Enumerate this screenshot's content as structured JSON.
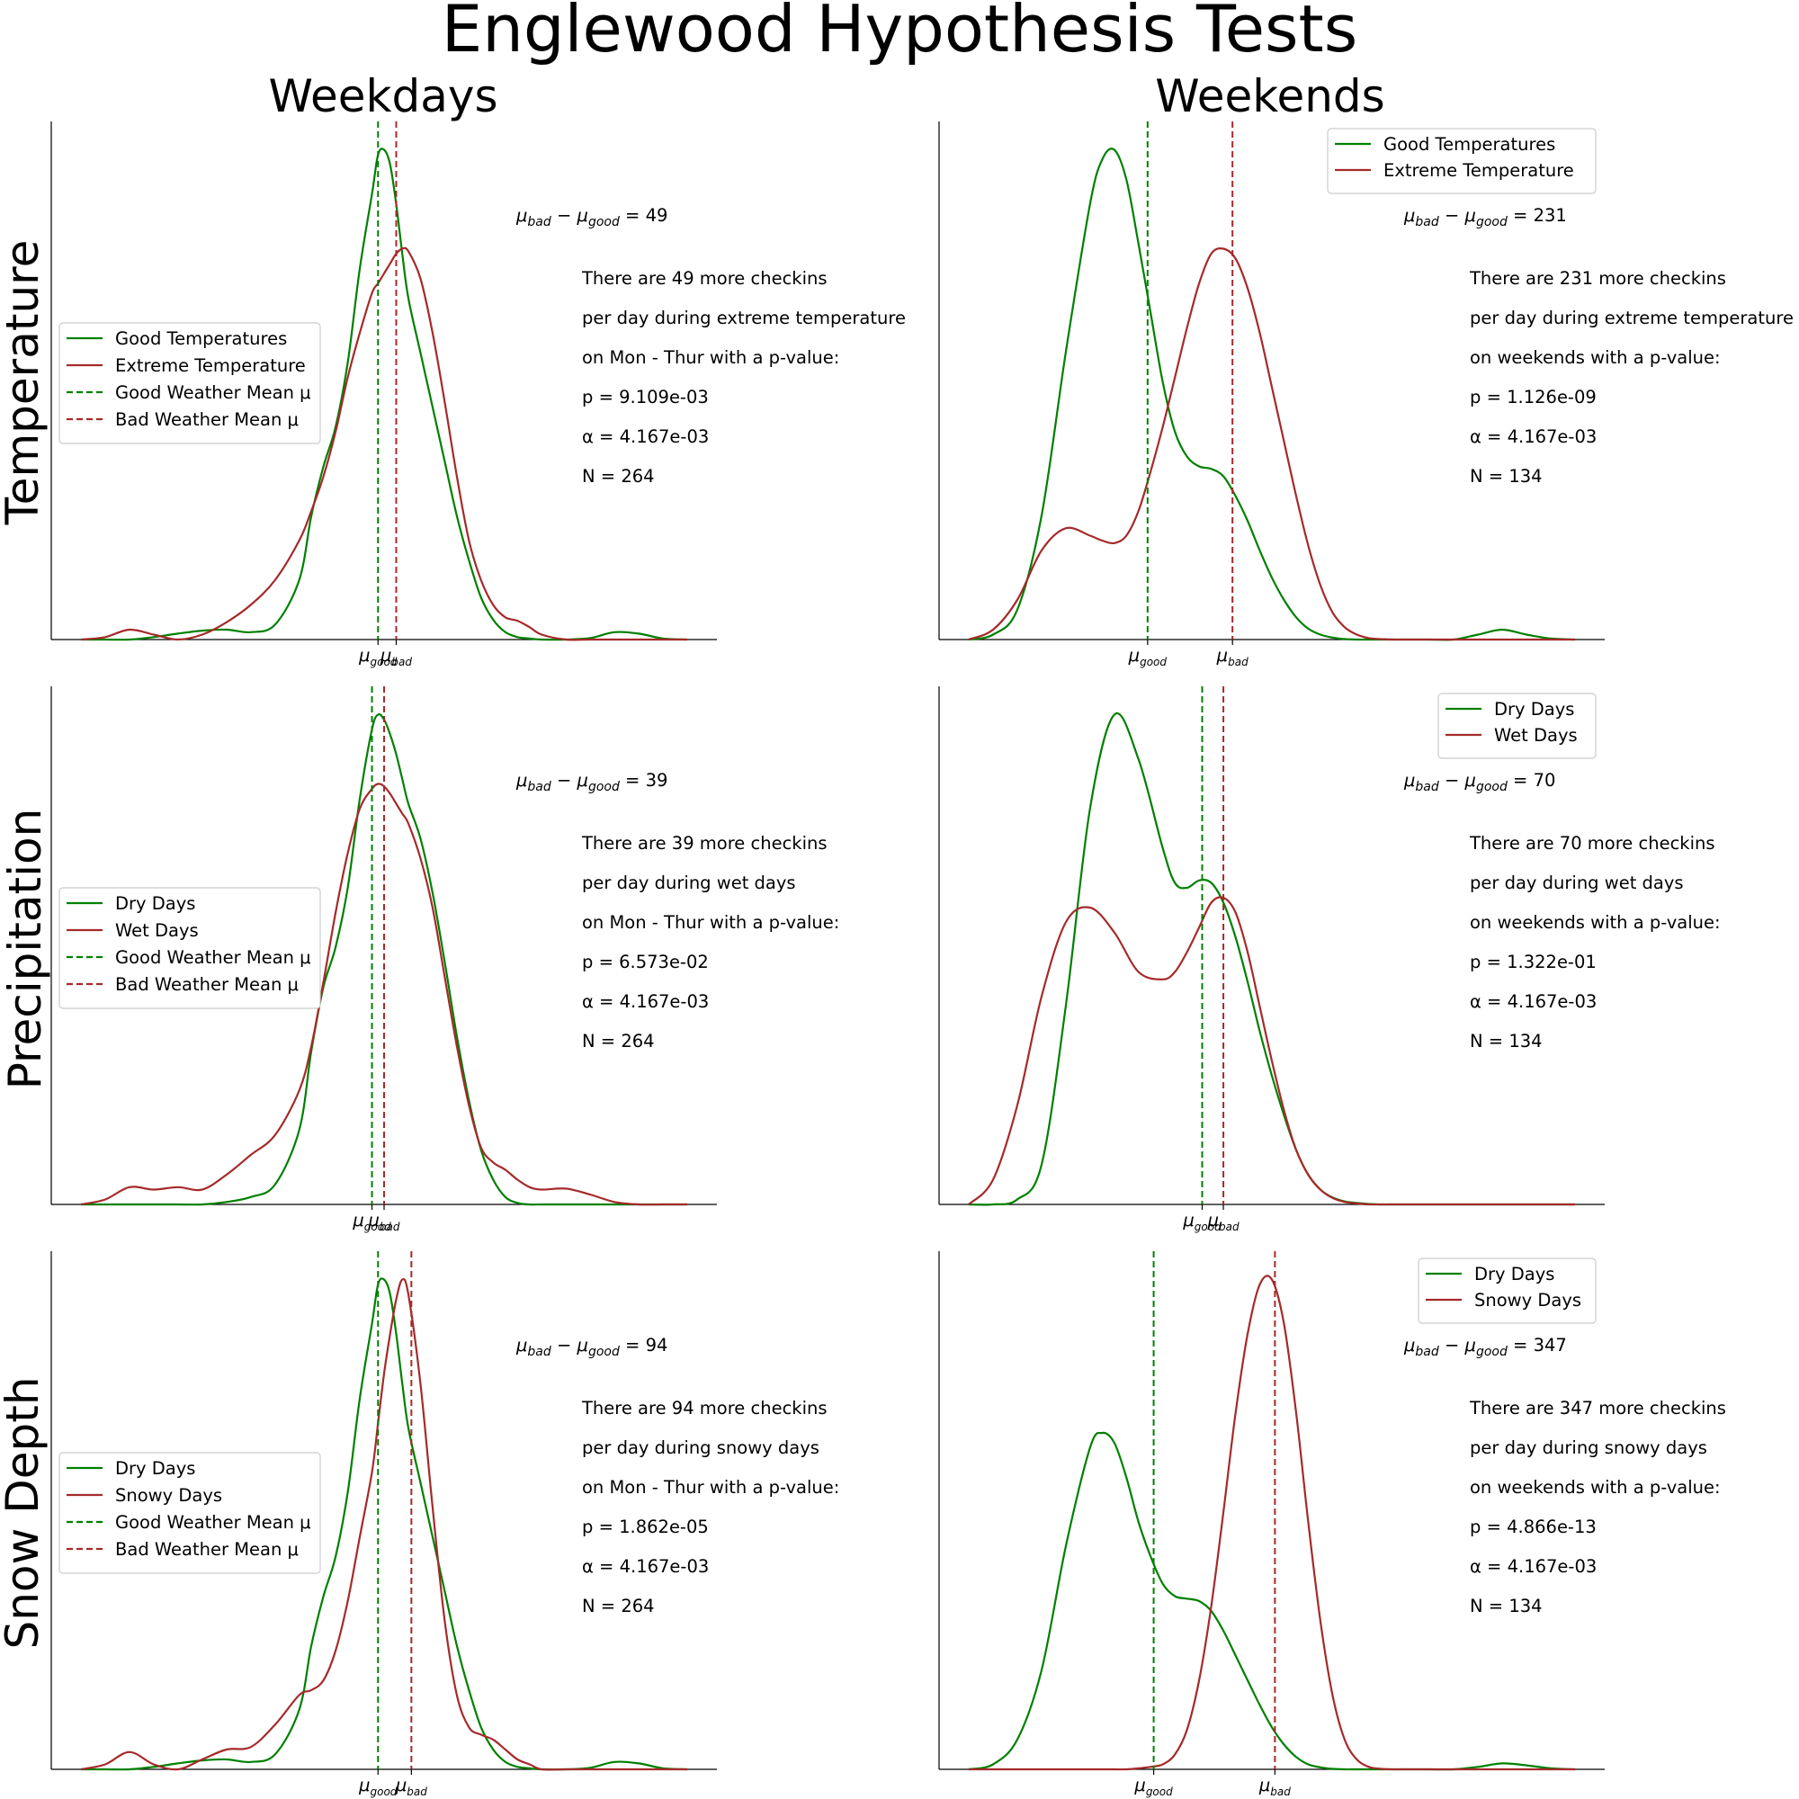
{
  "figure": {
    "title": "Englewood Hypothesis Tests",
    "col_titles": [
      "Weekdays",
      "Weekends"
    ],
    "row_titles": [
      "Temperature",
      "Precipitation",
      "Snow Depth"
    ]
  },
  "colors": {
    "good": "#008000",
    "bad": "#a52a2a"
  },
  "legend_labels": {
    "good_mean": "Good Weather Mean μ",
    "bad_mean": "Bad Weather Mean μ"
  },
  "tick_labels": {
    "good": "good",
    "bad": "bad"
  },
  "chart_data": [
    {
      "type": "line",
      "row": "Temperature",
      "col": "Weekdays",
      "legend_location": "center-left",
      "legend": [
        "Good Temperatures",
        "Extreme Temperature",
        "Good Weather Mean μ",
        "Bad Weather Mean μ"
      ],
      "x": [
        0.0,
        0.04,
        0.08,
        0.12,
        0.16,
        0.2,
        0.24,
        0.28,
        0.32,
        0.36,
        0.38,
        0.4,
        0.42,
        0.44,
        0.46,
        0.48,
        0.49,
        0.5,
        0.51,
        0.52,
        0.53,
        0.54,
        0.56,
        0.58,
        0.6,
        0.62,
        0.64,
        0.66,
        0.68,
        0.7,
        0.72,
        0.74,
        0.76,
        0.8,
        0.84,
        0.88,
        0.92,
        0.96,
        1.0
      ],
      "series": [
        {
          "name": "Good Temperatures",
          "values": [
            0.0,
            0.0,
            0.0,
            0.005,
            0.012,
            0.018,
            0.02,
            0.015,
            0.03,
            0.12,
            0.25,
            0.35,
            0.43,
            0.56,
            0.75,
            0.9,
            0.98,
            0.99,
            0.96,
            0.88,
            0.78,
            0.69,
            0.58,
            0.47,
            0.36,
            0.25,
            0.16,
            0.085,
            0.04,
            0.015,
            0.005,
            0.002,
            0.0,
            0.0,
            0.003,
            0.015,
            0.012,
            0.002,
            0.0
          ]
        },
        {
          "name": "Extreme Temperature",
          "values": [
            0.0,
            0.005,
            0.02,
            0.01,
            0.0,
            0.01,
            0.035,
            0.07,
            0.12,
            0.2,
            0.26,
            0.33,
            0.42,
            0.53,
            0.62,
            0.7,
            0.72,
            0.74,
            0.76,
            0.78,
            0.79,
            0.785,
            0.73,
            0.62,
            0.48,
            0.33,
            0.2,
            0.12,
            0.07,
            0.045,
            0.038,
            0.025,
            0.01,
            0.0,
            0.0,
            0.0,
            0.0,
            0.0,
            0.0
          ]
        }
      ],
      "mu_good": 0.49,
      "mu_bad": 0.52,
      "annotation": {
        "diff_expr": "μbad − μgood",
        "diff_value": "= 49",
        "lines": [
          "There are 49 more checkins",
          "per day during extreme temperature",
          "on Mon - Thur with a p-value:",
          "p = 9.109e-03",
          "α = 4.167e-03",
          "N = 264"
        ]
      }
    },
    {
      "type": "line",
      "row": "Temperature",
      "col": "Weekends",
      "legend_location": "top-right",
      "legend": [
        "Good Temperatures",
        "Extreme Temperature"
      ],
      "x": [
        0.0,
        0.04,
        0.08,
        0.12,
        0.16,
        0.2,
        0.22,
        0.24,
        0.26,
        0.28,
        0.3,
        0.32,
        0.34,
        0.36,
        0.38,
        0.4,
        0.42,
        0.44,
        0.46,
        0.48,
        0.5,
        0.52,
        0.54,
        0.56,
        0.58,
        0.6,
        0.62,
        0.64,
        0.66,
        0.68,
        0.7,
        0.72,
        0.74,
        0.76,
        0.8,
        0.84,
        0.88,
        0.92,
        0.96,
        1.0
      ],
      "series": [
        {
          "name": "Good Temperatures",
          "values": [
            0.0,
            0.01,
            0.06,
            0.25,
            0.58,
            0.88,
            0.97,
            0.99,
            0.93,
            0.8,
            0.66,
            0.52,
            0.42,
            0.37,
            0.35,
            0.345,
            0.33,
            0.29,
            0.24,
            0.18,
            0.125,
            0.08,
            0.045,
            0.022,
            0.01,
            0.004,
            0.001,
            0.0,
            0.0,
            0.0,
            0.0,
            0.0,
            0.0,
            0.0,
            0.0,
            0.01,
            0.02,
            0.01,
            0.002,
            0.0
          ]
        },
        {
          "name": "Extreme Temperature",
          "values": [
            0.0,
            0.02,
            0.08,
            0.18,
            0.225,
            0.21,
            0.2,
            0.195,
            0.21,
            0.26,
            0.34,
            0.43,
            0.53,
            0.63,
            0.72,
            0.78,
            0.79,
            0.77,
            0.71,
            0.62,
            0.51,
            0.4,
            0.29,
            0.19,
            0.11,
            0.055,
            0.025,
            0.01,
            0.003,
            0.001,
            0.0,
            0.0,
            0.0,
            0.0,
            0.0,
            0.0,
            0.0,
            0.0,
            0.0,
            0.0
          ]
        }
      ],
      "mu_good": 0.295,
      "mu_bad": 0.435,
      "annotation": {
        "diff_expr": "μbad − μgood",
        "diff_value": "= 231",
        "lines": [
          "There are 231 more checkins",
          "per day during extreme temperature",
          "on weekends with a p-value:",
          "p = 1.126e-09",
          "α = 4.167e-03",
          "N = 134"
        ]
      }
    },
    {
      "type": "line",
      "row": "Precipitation",
      "col": "Weekdays",
      "legend_location": "center-left",
      "legend": [
        "Dry Days",
        "Wet Days",
        "Good Weather Mean μ",
        "Bad Weather Mean μ"
      ],
      "x": [
        0.0,
        0.04,
        0.08,
        0.12,
        0.16,
        0.2,
        0.24,
        0.28,
        0.32,
        0.36,
        0.38,
        0.4,
        0.42,
        0.44,
        0.46,
        0.48,
        0.49,
        0.5,
        0.51,
        0.52,
        0.53,
        0.54,
        0.56,
        0.58,
        0.6,
        0.62,
        0.64,
        0.66,
        0.68,
        0.7,
        0.72,
        0.74,
        0.76,
        0.8,
        0.84,
        0.88,
        0.92,
        0.96,
        1.0
      ],
      "series": [
        {
          "name": "Dry Days",
          "values": [
            0.0,
            0.0,
            0.0,
            0.0,
            0.0,
            0.0,
            0.005,
            0.015,
            0.04,
            0.15,
            0.31,
            0.44,
            0.52,
            0.64,
            0.82,
            0.96,
            0.99,
            0.98,
            0.95,
            0.91,
            0.86,
            0.81,
            0.74,
            0.63,
            0.49,
            0.34,
            0.21,
            0.11,
            0.05,
            0.015,
            0.003,
            0.0,
            0.0,
            0.0,
            0.0,
            0.0,
            0.0,
            0.0,
            0.0
          ]
        },
        {
          "name": "Wet Days",
          "values": [
            0.0,
            0.01,
            0.035,
            0.03,
            0.035,
            0.03,
            0.06,
            0.1,
            0.14,
            0.23,
            0.32,
            0.45,
            0.59,
            0.71,
            0.8,
            0.84,
            0.85,
            0.845,
            0.83,
            0.81,
            0.79,
            0.77,
            0.7,
            0.6,
            0.46,
            0.32,
            0.2,
            0.115,
            0.085,
            0.07,
            0.05,
            0.035,
            0.03,
            0.032,
            0.02,
            0.005,
            0.0,
            0.0,
            0.0
          ]
        }
      ],
      "mu_good": 0.48,
      "mu_bad": 0.5,
      "annotation": {
        "diff_expr": "μbad − μgood",
        "diff_value": "= 39",
        "lines": [
          "There are 39 more checkins",
          "per day during wet days",
          "on Mon - Thur with a p-value:",
          "p = 6.573e-02",
          "α = 4.167e-03",
          "N = 264"
        ]
      }
    },
    {
      "type": "line",
      "row": "Precipitation",
      "col": "Weekends",
      "legend_location": "top-right",
      "legend": [
        "Dry Days",
        "Wet Days"
      ],
      "x": [
        0.0,
        0.04,
        0.08,
        0.12,
        0.16,
        0.2,
        0.24,
        0.28,
        0.32,
        0.34,
        0.36,
        0.38,
        0.4,
        0.42,
        0.44,
        0.46,
        0.48,
        0.5,
        0.52,
        0.54,
        0.56,
        0.58,
        0.6,
        0.62,
        0.64,
        0.66,
        0.68,
        0.7,
        0.72,
        0.74,
        0.76,
        0.8,
        0.84,
        0.88,
        0.92,
        0.96,
        1.0
      ],
      "series": [
        {
          "name": "Dry Days",
          "values": [
            0.0,
            0.0,
            0.01,
            0.08,
            0.4,
            0.8,
            0.99,
            0.9,
            0.72,
            0.65,
            0.64,
            0.655,
            0.65,
            0.61,
            0.54,
            0.45,
            0.35,
            0.26,
            0.18,
            0.11,
            0.06,
            0.03,
            0.014,
            0.006,
            0.003,
            0.001,
            0.0,
            0.0,
            0.0,
            0.0,
            0.0,
            0.0,
            0.0,
            0.0,
            0.0,
            0.0,
            0.0
          ]
        },
        {
          "name": "Wet Days",
          "values": [
            0.0,
            0.05,
            0.2,
            0.42,
            0.57,
            0.6,
            0.55,
            0.47,
            0.455,
            0.47,
            0.51,
            0.56,
            0.61,
            0.62,
            0.59,
            0.51,
            0.4,
            0.29,
            0.19,
            0.11,
            0.06,
            0.03,
            0.013,
            0.005,
            0.002,
            0.0,
            0.0,
            0.0,
            0.0,
            0.0,
            0.0,
            0.0,
            0.0,
            0.0,
            0.0,
            0.0,
            0.0
          ]
        }
      ],
      "mu_good": 0.385,
      "mu_bad": 0.42,
      "annotation": {
        "diff_expr": "μbad − μgood",
        "diff_value": "= 70",
        "lines": [
          "There are 70 more checkins",
          "per day during wet days",
          "on weekends with a p-value:",
          "p = 1.322e-01",
          "α = 4.167e-03",
          "N = 134"
        ]
      }
    },
    {
      "type": "line",
      "row": "Snow Depth",
      "col": "Weekdays",
      "legend_location": "center-left",
      "legend": [
        "Dry Days",
        "Snowy Days",
        "Good Weather Mean μ",
        "Bad Weather Mean μ"
      ],
      "x": [
        0.0,
        0.04,
        0.08,
        0.12,
        0.16,
        0.2,
        0.24,
        0.28,
        0.32,
        0.36,
        0.38,
        0.4,
        0.42,
        0.44,
        0.46,
        0.48,
        0.49,
        0.5,
        0.51,
        0.52,
        0.53,
        0.54,
        0.56,
        0.58,
        0.6,
        0.62,
        0.64,
        0.66,
        0.68,
        0.7,
        0.72,
        0.74,
        0.76,
        0.8,
        0.84,
        0.88,
        0.92,
        0.96,
        1.0
      ],
      "series": [
        {
          "name": "Dry Days",
          "values": [
            0.0,
            0.0,
            0.0,
            0.005,
            0.012,
            0.018,
            0.02,
            0.015,
            0.03,
            0.12,
            0.25,
            0.35,
            0.43,
            0.56,
            0.75,
            0.9,
            0.98,
            0.99,
            0.96,
            0.88,
            0.78,
            0.69,
            0.58,
            0.47,
            0.36,
            0.25,
            0.16,
            0.085,
            0.04,
            0.015,
            0.005,
            0.002,
            0.0,
            0.0,
            0.003,
            0.015,
            0.012,
            0.002,
            0.0
          ]
        },
        {
          "name": "Snowy Days",
          "values": [
            0.0,
            0.01,
            0.035,
            0.01,
            0.0,
            0.02,
            0.04,
            0.045,
            0.09,
            0.15,
            0.16,
            0.18,
            0.24,
            0.34,
            0.47,
            0.6,
            0.7,
            0.8,
            0.88,
            0.95,
            0.99,
            0.96,
            0.78,
            0.53,
            0.3,
            0.15,
            0.085,
            0.07,
            0.06,
            0.04,
            0.02,
            0.01,
            0.0,
            0.0,
            0.0,
            0.0,
            0.0,
            0.0,
            0.0
          ]
        }
      ],
      "mu_good": 0.49,
      "mu_bad": 0.545,
      "annotation": {
        "diff_expr": "μbad − μgood",
        "diff_value": "= 94",
        "lines": [
          "There are 94 more checkins",
          "per day during snowy days",
          "on Mon - Thur with a p-value:",
          "p = 1.862e-05",
          "α = 4.167e-03",
          "N = 264"
        ]
      }
    },
    {
      "type": "line",
      "row": "Snow Depth",
      "col": "Weekends",
      "legend_location": "top-right",
      "legend": [
        "Dry Days",
        "Snowy Days"
      ],
      "x": [
        0.0,
        0.04,
        0.08,
        0.12,
        0.16,
        0.2,
        0.22,
        0.24,
        0.26,
        0.28,
        0.3,
        0.32,
        0.34,
        0.36,
        0.38,
        0.4,
        0.42,
        0.44,
        0.46,
        0.48,
        0.5,
        0.52,
        0.54,
        0.56,
        0.58,
        0.6,
        0.62,
        0.64,
        0.66,
        0.68,
        0.7,
        0.72,
        0.74,
        0.76,
        0.8,
        0.84,
        0.88,
        0.92,
        0.96,
        1.0
      ],
      "series": [
        {
          "name": "Dry Days",
          "values": [
            0.0,
            0.01,
            0.06,
            0.2,
            0.45,
            0.65,
            0.68,
            0.66,
            0.59,
            0.5,
            0.43,
            0.375,
            0.35,
            0.345,
            0.34,
            0.32,
            0.28,
            0.23,
            0.18,
            0.13,
            0.085,
            0.05,
            0.025,
            0.01,
            0.004,
            0.001,
            0.0,
            0.0,
            0.0,
            0.0,
            0.0,
            0.0,
            0.0,
            0.0,
            0.0,
            0.005,
            0.012,
            0.008,
            0.002,
            0.0
          ]
        },
        {
          "name": "Snowy Days",
          "values": [
            0.0,
            0.0,
            0.0,
            0.0,
            0.0,
            0.0,
            0.0,
            0.0,
            0.0,
            0.002,
            0.005,
            0.01,
            0.03,
            0.08,
            0.18,
            0.33,
            0.52,
            0.72,
            0.88,
            0.98,
            0.99,
            0.9,
            0.72,
            0.5,
            0.3,
            0.15,
            0.06,
            0.02,
            0.005,
            0.001,
            0.0,
            0.0,
            0.0,
            0.0,
            0.0,
            0.0,
            0.0,
            0.0,
            0.0,
            0.0
          ]
        }
      ],
      "mu_good": 0.305,
      "mu_bad": 0.505,
      "annotation": {
        "diff_expr": "μbad − μgood",
        "diff_value": "= 347",
        "lines": [
          "There are 347 more checkins",
          "per day during snowy days",
          "on weekends with a p-value:",
          "p = 4.866e-13",
          "α = 4.167e-03",
          "N = 134"
        ]
      }
    }
  ]
}
